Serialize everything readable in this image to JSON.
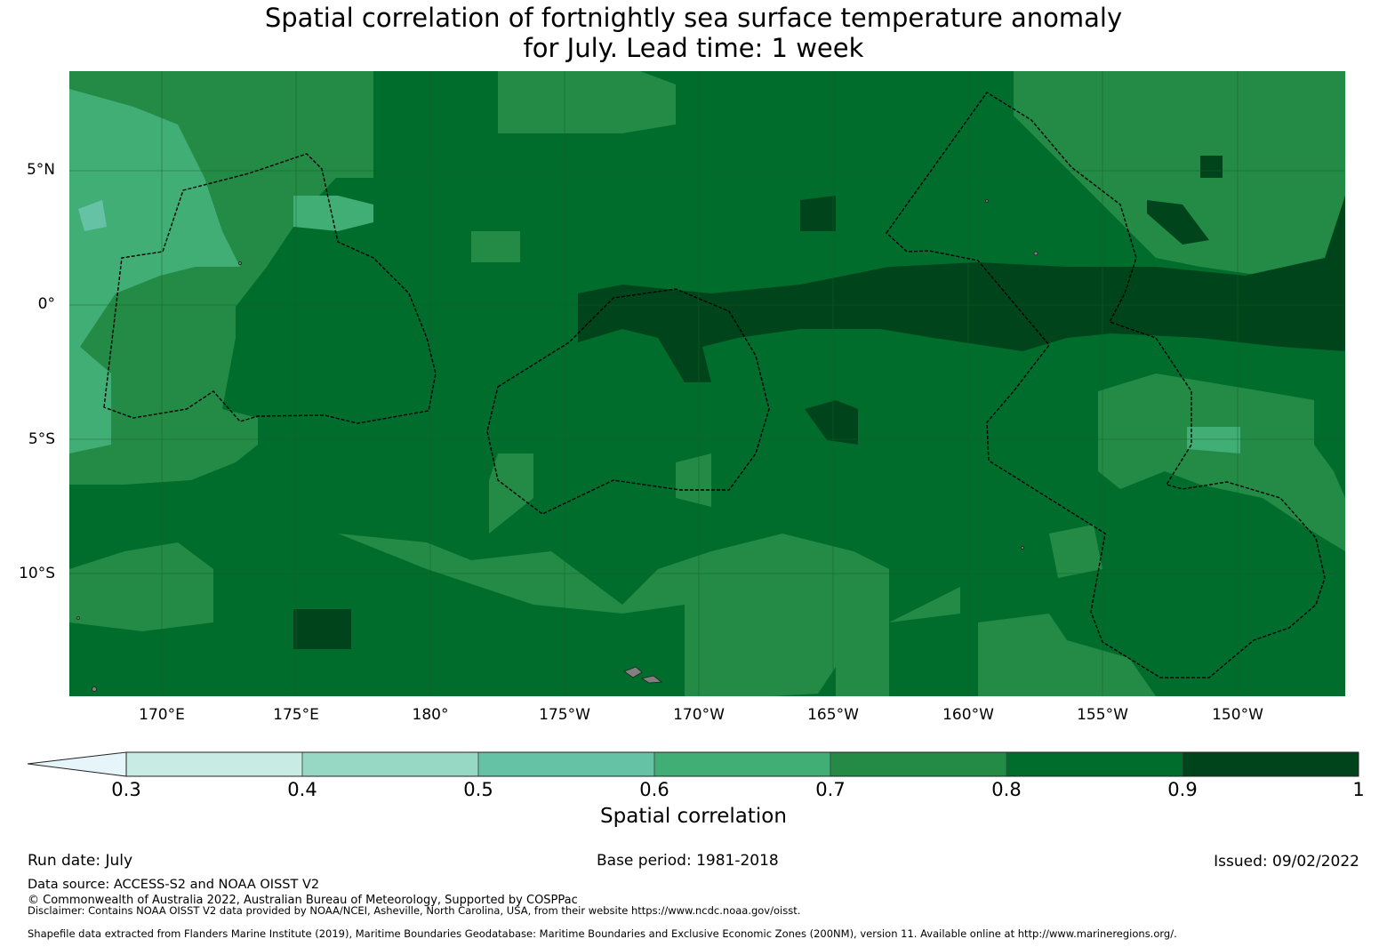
{
  "title_line1": "Spatial correlation of fortnightly sea surface temperature anomaly",
  "title_line2": "for July. Lead time: 1 week",
  "map": {
    "lon_labels": [
      "170°E",
      "175°E",
      "180°",
      "175°W",
      "170°W",
      "165°W",
      "160°W",
      "155°W",
      "150°W"
    ],
    "lat_labels": [
      "5°N",
      "0°",
      "5°S",
      "10°S"
    ],
    "colors": {
      "bin_0_3_0_4": "#c8ebe3",
      "bin_0_4_0_5": "#97d8c4",
      "bin_0_5_0_6": "#66c2a4",
      "bin_0_6_0_7": "#41ae76",
      "bin_0_7_0_8": "#238b45",
      "bin_0_8_0_9": "#006d2c",
      "bin_0_9_1": "#00441b",
      "land": "#808080",
      "eez_boundary": "#000000"
    }
  },
  "colorbar": {
    "label": "Spatial correlation",
    "ticks": [
      "0.3",
      "0.4",
      "0.5",
      "0.6",
      "0.7",
      "0.8",
      "0.9",
      "1"
    ],
    "extend_color": "#e5f5f9",
    "colors": [
      "#c8ebe3",
      "#97d8c4",
      "#66c2a4",
      "#41ae76",
      "#238b45",
      "#006d2c",
      "#00441b"
    ]
  },
  "footer": {
    "run_date": "Run date: July",
    "base_period": "Base period: 1981-2018",
    "issued": "Issued: 09/02/2022",
    "data_source": "Data source: ACCESS-S2 and NOAA OISST V2",
    "copyright": "© Commonwealth of Australia 2022, Australian Bureau of Meteorology, Supported by COSPPac",
    "disclaimer": "Disclaimer: Contains NOAA OISST V2 data provided by NOAA/NCEI, Asheville, North Carolina, USA, from their website https://www.ncdc.noaa.gov/oisst.",
    "shapefile": "Shapefile data extracted from Flanders Marine Institute (2019), Maritime Boundaries Geodatabase: Maritime Boundaries and Exclusive Economic Zones (200NM), version 11. Available online at http://www.marineregions.org/."
  }
}
